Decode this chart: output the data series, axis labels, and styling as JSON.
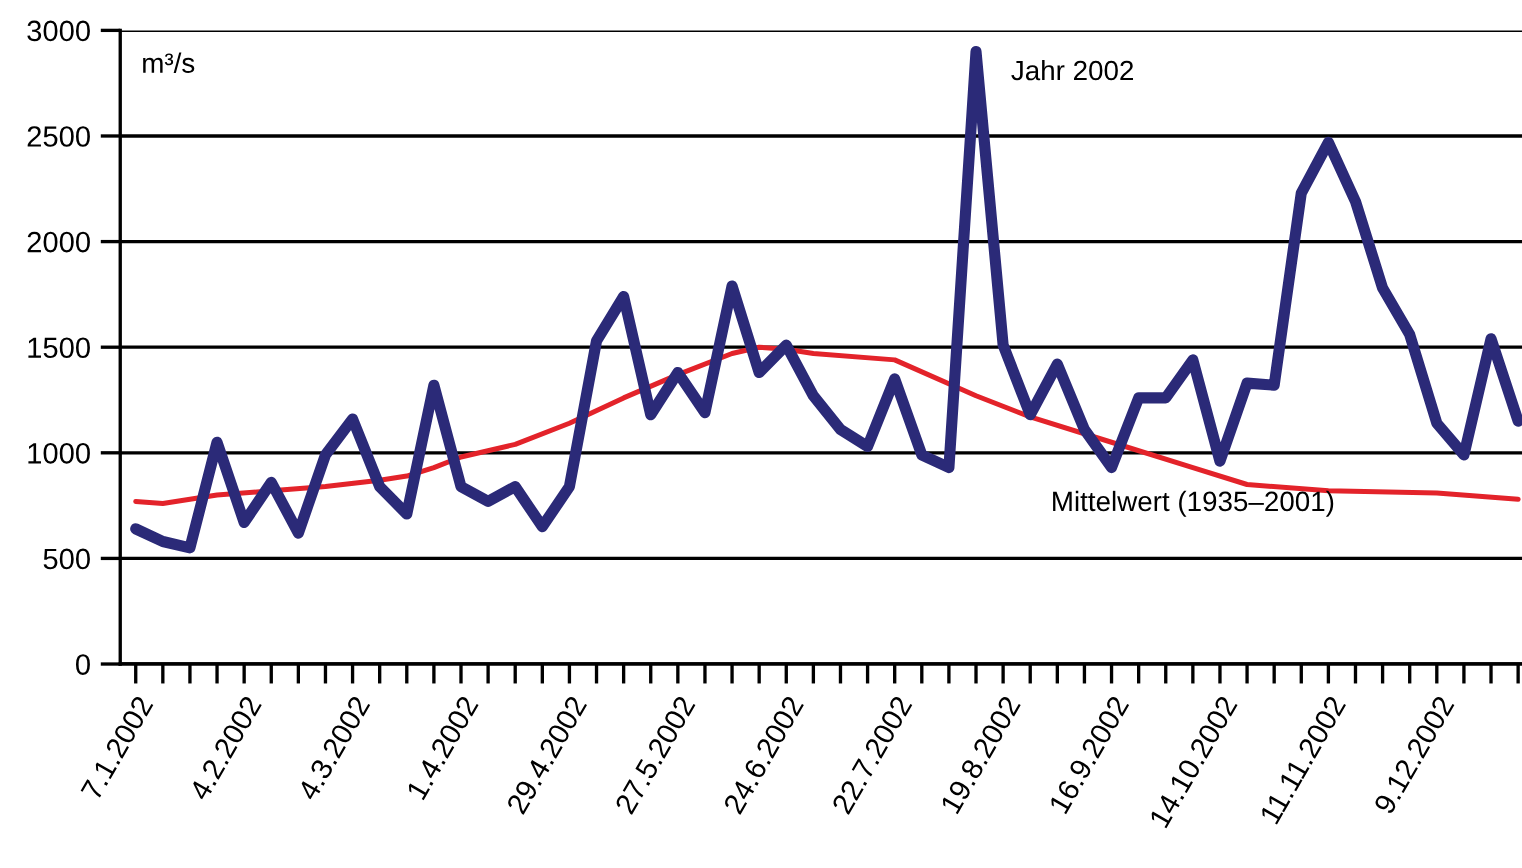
{
  "chart_data": {
    "type": "line",
    "ylabel": "m³/s",
    "ylim": [
      0,
      3000
    ],
    "yticks": [
      0,
      500,
      1000,
      1500,
      2000,
      2500,
      3000
    ],
    "xlim": [
      "2002-01-03",
      "2002-12-31"
    ],
    "xticks": [
      {
        "value": "2002-01-07",
        "label": "7.1.2002"
      },
      {
        "value": "2002-01-14",
        "label": null
      },
      {
        "value": "2002-01-21",
        "label": null
      },
      {
        "value": "2002-01-28",
        "label": null
      },
      {
        "value": "2002-02-04",
        "label": "4.2.2002"
      },
      {
        "value": "2002-02-11",
        "label": null
      },
      {
        "value": "2002-02-18",
        "label": null
      },
      {
        "value": "2002-02-25",
        "label": null
      },
      {
        "value": "2002-03-04",
        "label": "4.3.2002"
      },
      {
        "value": "2002-03-11",
        "label": null
      },
      {
        "value": "2002-03-18",
        "label": null
      },
      {
        "value": "2002-03-25",
        "label": null
      },
      {
        "value": "2002-04-01",
        "label": "1.4.2002"
      },
      {
        "value": "2002-04-08",
        "label": null
      },
      {
        "value": "2002-04-15",
        "label": null
      },
      {
        "value": "2002-04-22",
        "label": null
      },
      {
        "value": "2002-04-29",
        "label": "29.4.2002"
      },
      {
        "value": "2002-05-06",
        "label": null
      },
      {
        "value": "2002-05-13",
        "label": null
      },
      {
        "value": "2002-05-20",
        "label": null
      },
      {
        "value": "2002-05-27",
        "label": "27.5.2002"
      },
      {
        "value": "2002-06-03",
        "label": null
      },
      {
        "value": "2002-06-10",
        "label": null
      },
      {
        "value": "2002-06-17",
        "label": null
      },
      {
        "value": "2002-06-24",
        "label": "24.6.2002"
      },
      {
        "value": "2002-07-01",
        "label": null
      },
      {
        "value": "2002-07-08",
        "label": null
      },
      {
        "value": "2002-07-15",
        "label": null
      },
      {
        "value": "2002-07-22",
        "label": "22.7.2002"
      },
      {
        "value": "2002-07-29",
        "label": null
      },
      {
        "value": "2002-08-05",
        "label": null
      },
      {
        "value": "2002-08-12",
        "label": null
      },
      {
        "value": "2002-08-19",
        "label": "19.8.2002"
      },
      {
        "value": "2002-08-26",
        "label": null
      },
      {
        "value": "2002-09-02",
        "label": null
      },
      {
        "value": "2002-09-09",
        "label": null
      },
      {
        "value": "2002-09-16",
        "label": "16.9.2002"
      },
      {
        "value": "2002-09-23",
        "label": null
      },
      {
        "value": "2002-09-30",
        "label": null
      },
      {
        "value": "2002-10-07",
        "label": null
      },
      {
        "value": "2002-10-14",
        "label": "14.10.2002"
      },
      {
        "value": "2002-10-21",
        "label": null
      },
      {
        "value": "2002-10-28",
        "label": null
      },
      {
        "value": "2002-11-04",
        "label": null
      },
      {
        "value": "2002-11-11",
        "label": "11.11.2002"
      },
      {
        "value": "2002-11-18",
        "label": null
      },
      {
        "value": "2002-11-25",
        "label": null
      },
      {
        "value": "2002-12-02",
        "label": null
      },
      {
        "value": "2002-12-09",
        "label": "9.12.2002"
      },
      {
        "value": "2002-12-16",
        "label": null
      },
      {
        "value": "2002-12-23",
        "label": null
      },
      {
        "value": "2002-12-30",
        "label": null
      }
    ],
    "grid": "y",
    "legend": false,
    "series": [
      {
        "name": "Jahr 2002",
        "color": "#2b2a78",
        "x": [
          "2002-01-07",
          "2002-01-14",
          "2002-01-21",
          "2002-01-28",
          "2002-02-04",
          "2002-02-11",
          "2002-02-18",
          "2002-02-25",
          "2002-03-04",
          "2002-03-11",
          "2002-03-18",
          "2002-03-25",
          "2002-04-01",
          "2002-04-08",
          "2002-04-15",
          "2002-04-22",
          "2002-04-29",
          "2002-05-06",
          "2002-05-13",
          "2002-05-20",
          "2002-05-27",
          "2002-06-03",
          "2002-06-10",
          "2002-06-17",
          "2002-06-24",
          "2002-07-01",
          "2002-07-08",
          "2002-07-15",
          "2002-07-22",
          "2002-07-29",
          "2002-08-05",
          "2002-08-12",
          "2002-08-19",
          "2002-08-26",
          "2002-09-02",
          "2002-09-09",
          "2002-09-16",
          "2002-09-23",
          "2002-09-30",
          "2002-10-07",
          "2002-10-14",
          "2002-10-21",
          "2002-10-28",
          "2002-11-04",
          "2002-11-11",
          "2002-11-18",
          "2002-11-25",
          "2002-12-02",
          "2002-12-09",
          "2002-12-16",
          "2002-12-23",
          "2002-12-30"
        ],
        "values": [
          640,
          580,
          550,
          1050,
          670,
          860,
          620,
          990,
          1160,
          840,
          710,
          1320,
          840,
          770,
          840,
          650,
          840,
          1530,
          1740,
          1180,
          1380,
          1190,
          1790,
          1380,
          1510,
          1270,
          1110,
          1030,
          1350,
          990,
          930,
          2900,
          1510,
          1180,
          1420,
          1110,
          930,
          1260,
          1260,
          1440,
          960,
          1330,
          1320,
          2230,
          2470,
          2190,
          1780,
          1560,
          1140,
          990,
          1540,
          1150
        ]
      },
      {
        "name": "Mittelwert (1935–2001)",
        "color": "#e3232a",
        "x": [
          "2002-01-07",
          "2002-01-14",
          "2002-01-21",
          "2002-01-28",
          "2002-02-11",
          "2002-02-25",
          "2002-03-11",
          "2002-03-18",
          "2002-03-25",
          "2002-04-01",
          "2002-04-15",
          "2002-04-29",
          "2002-05-13",
          "2002-05-27",
          "2002-06-10",
          "2002-06-17",
          "2002-06-24",
          "2002-07-01",
          "2002-07-22",
          "2002-08-12",
          "2002-08-26",
          "2002-09-16",
          "2002-10-07",
          "2002-10-21",
          "2002-11-11",
          "2002-12-09",
          "2002-12-30"
        ],
        "values": [
          770,
          760,
          780,
          800,
          820,
          840,
          870,
          890,
          930,
          980,
          1040,
          1140,
          1260,
          1370,
          1470,
          1500,
          1490,
          1470,
          1440,
          1270,
          1170,
          1050,
          930,
          850,
          820,
          810,
          780
        ]
      }
    ]
  }
}
